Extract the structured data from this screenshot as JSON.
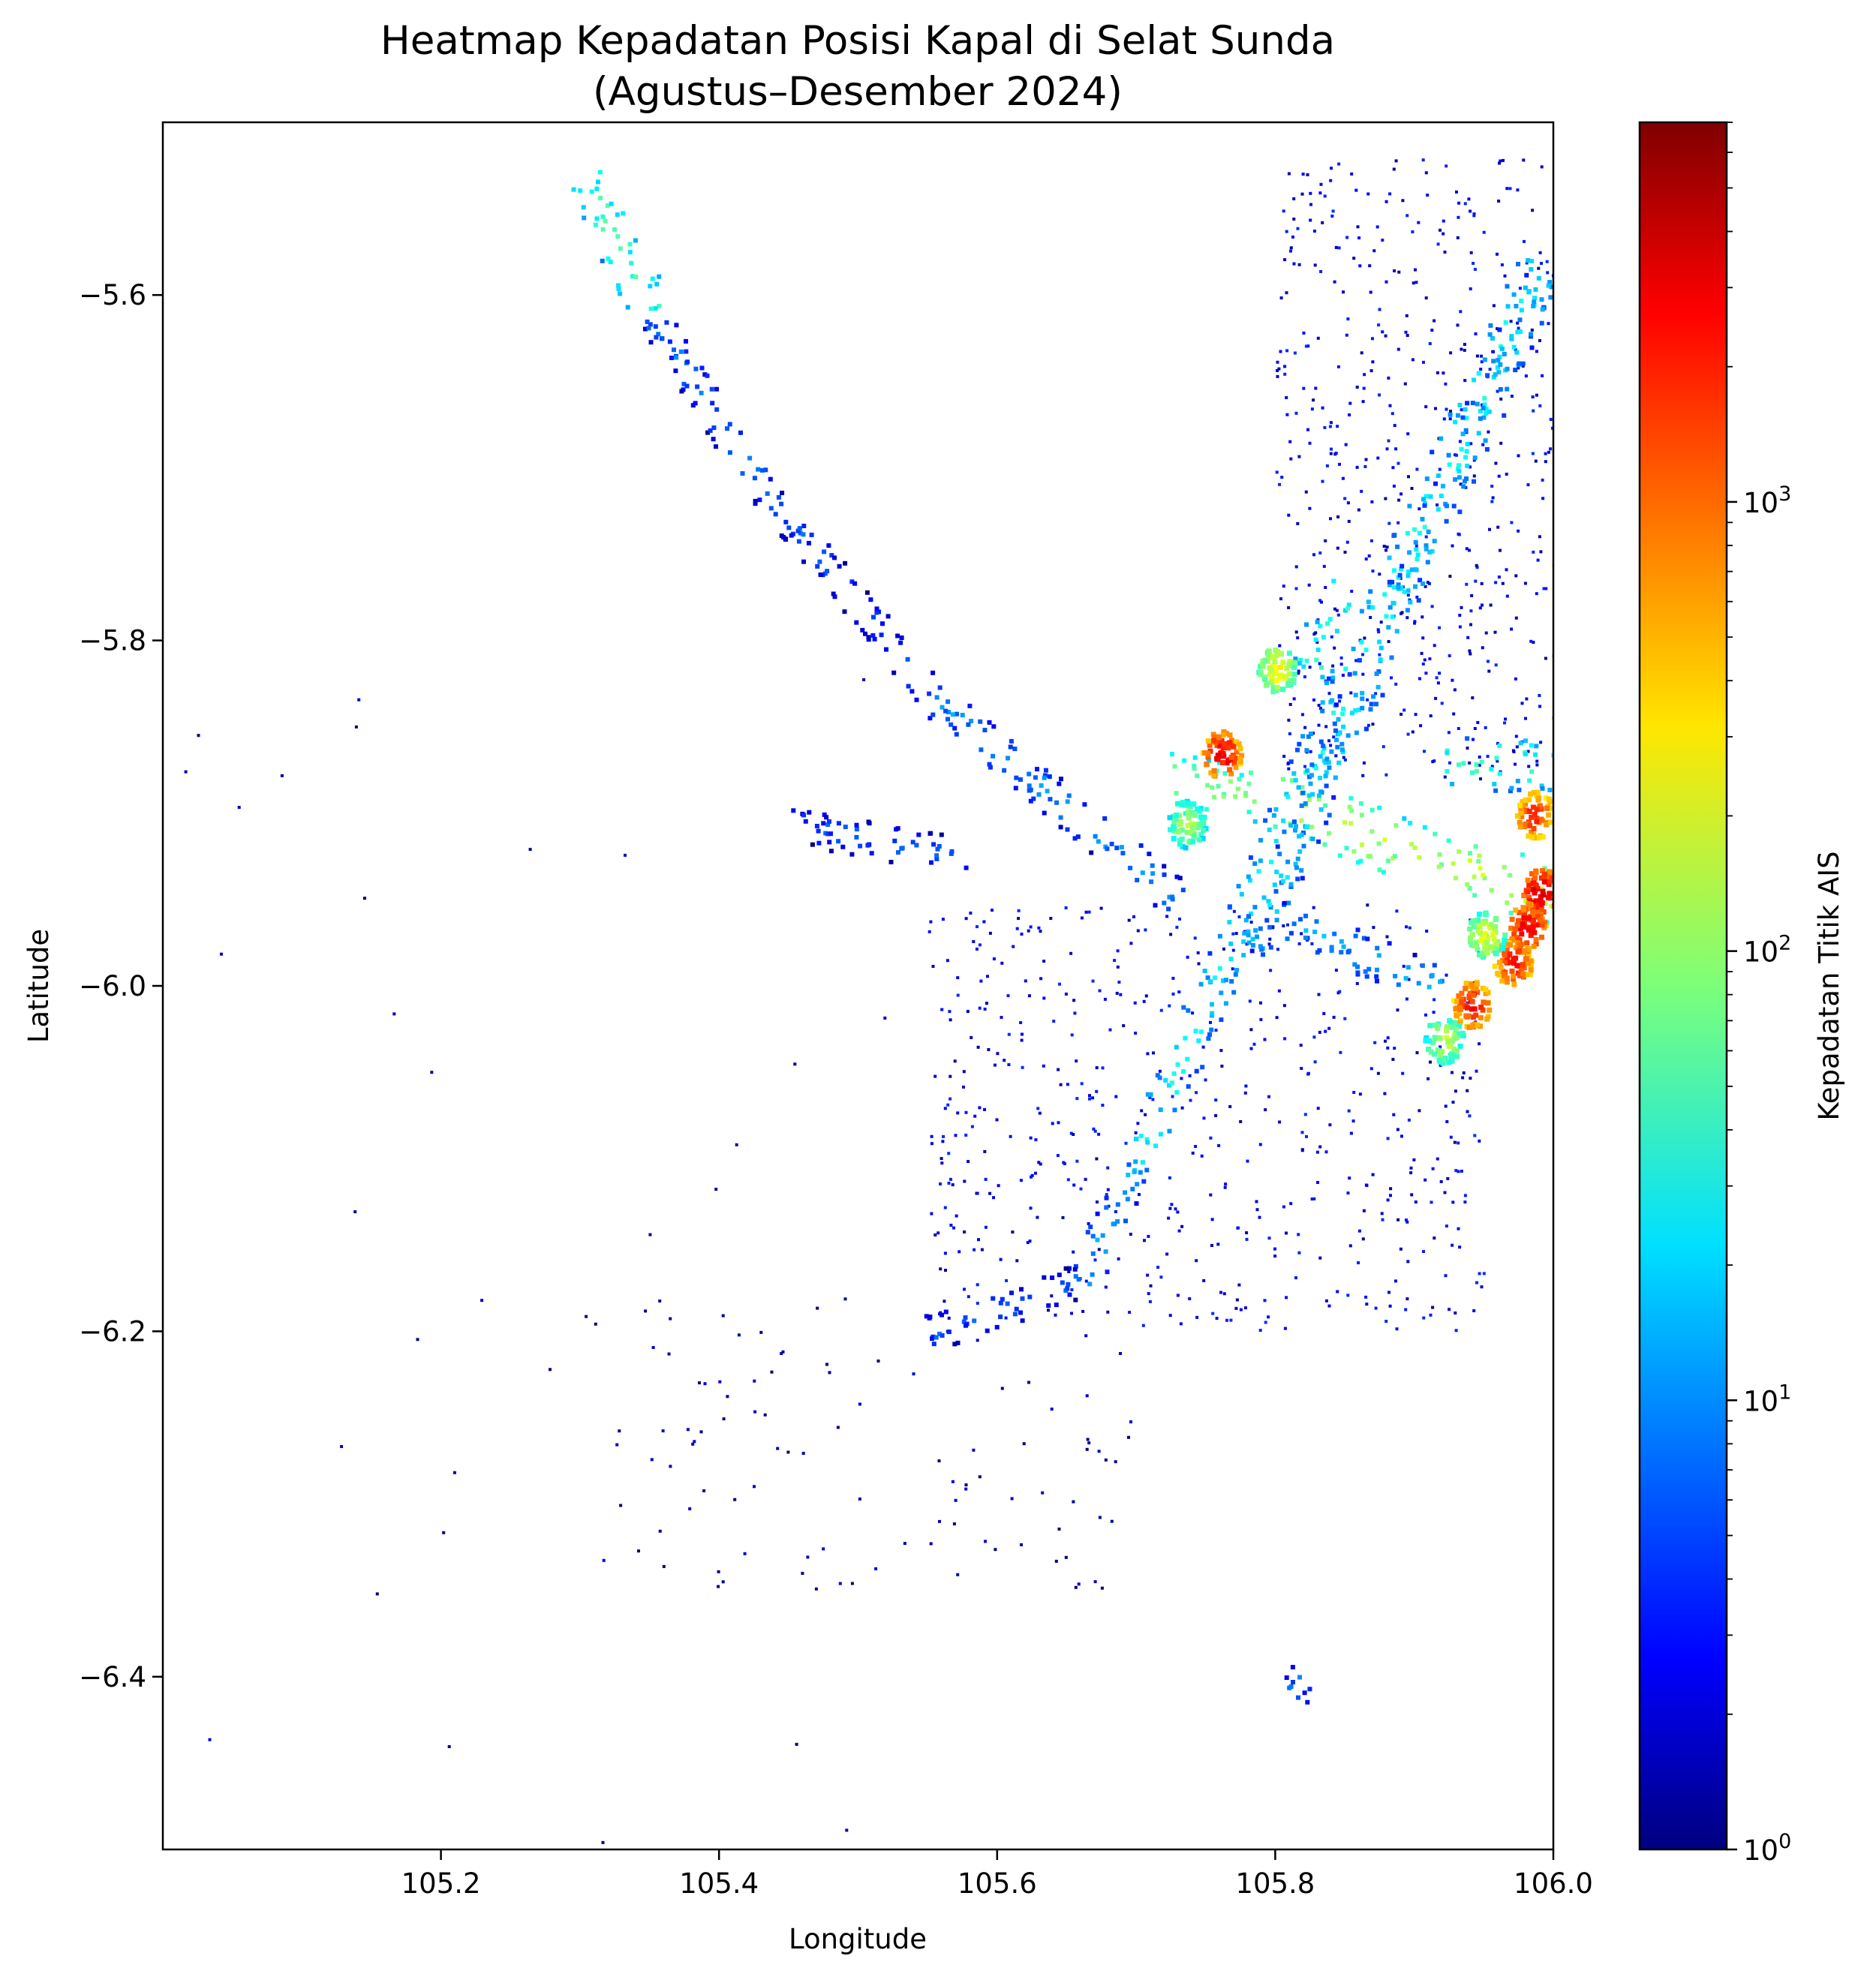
{
  "chart_data": {
    "type": "heatmap",
    "title": "Heatmap Kepadatan Posisi Kapal di Selat Sunda",
    "subtitle": "(Agustus–Desember 2024)",
    "xlabel": "Longitude",
    "ylabel": "Latitude",
    "xlim": [
      105.0,
      106.0
    ],
    "ylim": [
      -6.5,
      -5.5
    ],
    "x_ticks": [
      105.2,
      105.4,
      105.6,
      105.8,
      106.0
    ],
    "x_tick_labels": [
      "105.2",
      "105.4",
      "105.6",
      "105.8",
      "106.0"
    ],
    "y_ticks": [
      -5.6,
      -5.8,
      -6.0,
      -6.2,
      -6.4
    ],
    "y_tick_labels": [
      "−5.6",
      "−5.8",
      "−6.0",
      "−6.2",
      "−6.4"
    ],
    "grid": false,
    "colormap": "jet",
    "colorbar": {
      "label": "Kepadatan Titik AIS",
      "scale": "log",
      "range": [
        1,
        7000
      ],
      "ticks": [
        1,
        10,
        100,
        1000
      ],
      "tick_labels": [
        {
          "base": "10",
          "exp": "0"
        },
        {
          "base": "10",
          "exp": "1"
        },
        {
          "base": "10",
          "exp": "2"
        },
        {
          "base": "10",
          "exp": "3"
        }
      ]
    },
    "traffic_segments": [
      {
        "from": [
          105.3,
          -5.525
        ],
        "to": [
          105.35,
          -5.61
        ],
        "density": 45
      },
      {
        "from": [
          105.35,
          -5.61
        ],
        "to": [
          105.43,
          -5.71
        ],
        "density": 8
      },
      {
        "from": [
          105.43,
          -5.71
        ],
        "to": [
          105.55,
          -5.83
        ],
        "density": 6
      },
      {
        "from": [
          105.55,
          -5.83
        ],
        "to": [
          105.73,
          -5.95
        ],
        "density": 10
      },
      {
        "from": [
          105.45,
          -5.905
        ],
        "to": [
          105.58,
          -5.925
        ],
        "density": 6
      },
      {
        "from": [
          105.72,
          -5.88
        ],
        "to": [
          105.8,
          -5.89
        ],
        "density": 80
      },
      {
        "from": [
          105.8,
          -5.89
        ],
        "to": [
          105.92,
          -5.93
        ],
        "density": 120
      },
      {
        "from": [
          105.92,
          -5.93
        ],
        "to": [
          106.0,
          -5.945
        ],
        "density": 160
      },
      {
        "from": [
          105.7,
          -6.1
        ],
        "to": [
          105.82,
          -5.88
        ],
        "density": 25
      },
      {
        "from": [
          105.66,
          -6.17
        ],
        "to": [
          105.7,
          -6.1
        ],
        "density": 12
      },
      {
        "from": [
          105.82,
          -5.88
        ],
        "to": [
          105.99,
          -5.58
        ],
        "density": 30
      },
      {
        "from": [
          105.78,
          -5.98
        ],
        "to": [
          105.99,
          -5.59
        ],
        "density": 18
      },
      {
        "from": [
          105.92,
          -5.87
        ],
        "to": [
          106.0,
          -5.87
        ],
        "density": 45
      },
      {
        "from": [
          105.8,
          -5.96
        ],
        "to": [
          105.92,
          -6.0
        ],
        "density": 12
      },
      {
        "from": [
          105.55,
          -6.2
        ],
        "to": [
          105.66,
          -6.17
        ],
        "density": 6
      },
      {
        "from": [
          105.81,
          -6.41
        ],
        "to": [
          105.82,
          -6.4
        ],
        "density": 8
      },
      {
        "from": [
          105.82,
          -5.82
        ],
        "to": [
          105.85,
          -5.77
        ],
        "density": 40
      }
    ],
    "hotspots": [
      {
        "lon": 105.985,
        "lat": -5.9,
        "density": 1500
      },
      {
        "lon": 105.99,
        "lat": -5.945,
        "density": 3500
      },
      {
        "lon": 105.98,
        "lat": -5.965,
        "density": 2500
      },
      {
        "lon": 105.97,
        "lat": -5.985,
        "density": 1800
      },
      {
        "lon": 105.94,
        "lat": -6.01,
        "density": 2000
      },
      {
        "lon": 105.76,
        "lat": -5.865,
        "density": 2500
      },
      {
        "lon": 105.735,
        "lat": -5.905,
        "density": 120
      },
      {
        "lon": 105.8,
        "lat": -5.815,
        "density": 250
      },
      {
        "lon": 105.95,
        "lat": -5.97,
        "density": 200
      },
      {
        "lon": 105.92,
        "lat": -6.03,
        "density": 150
      }
    ],
    "scatter_regions": [
      {
        "lon": [
          105.8,
          106.0
        ],
        "lat": [
          -5.88,
          -5.52
        ],
        "density": 2,
        "fill": 0.3
      },
      {
        "lon": [
          105.55,
          105.95
        ],
        "lat": [
          -6.2,
          -5.95
        ],
        "density": 2,
        "fill": 0.22
      },
      {
        "lon": [
          105.3,
          105.7
        ],
        "lat": [
          -6.35,
          -6.18
        ],
        "density": 1,
        "fill": 0.06
      },
      {
        "lon": [
          105.0,
          105.55
        ],
        "lat": [
          -6.5,
          -5.8
        ],
        "density": 1,
        "fill": 0.004
      }
    ]
  }
}
